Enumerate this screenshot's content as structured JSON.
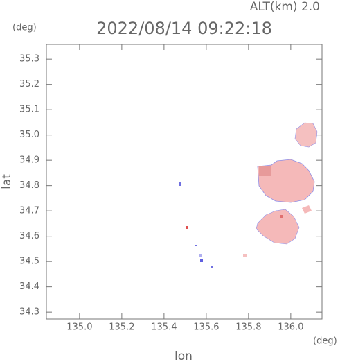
{
  "chart_data": {
    "type": "map",
    "title": "2022/08/14 09:22:18",
    "subtitle": "ALT(km) 2.0",
    "x_unit": "(deg)",
    "y_unit": "(deg)",
    "xlabel": "lon",
    "ylabel": "lat",
    "xlim": [
      134.843,
      136.148
    ],
    "ylim": [
      34.273,
      35.358
    ],
    "xticks": [
      {
        "value": 135,
        "label": "135.0"
      },
      135.2,
      135.4,
      135.6,
      135.8,
      {
        "value": 136,
        "label": "136.0"
      }
    ],
    "yticks": [
      34.3,
      34.4,
      34.5,
      34.6,
      34.7,
      34.8,
      34.9,
      {
        "value": 35,
        "label": "35.0"
      },
      35.1,
      35.2,
      35.3
    ]
  }
}
